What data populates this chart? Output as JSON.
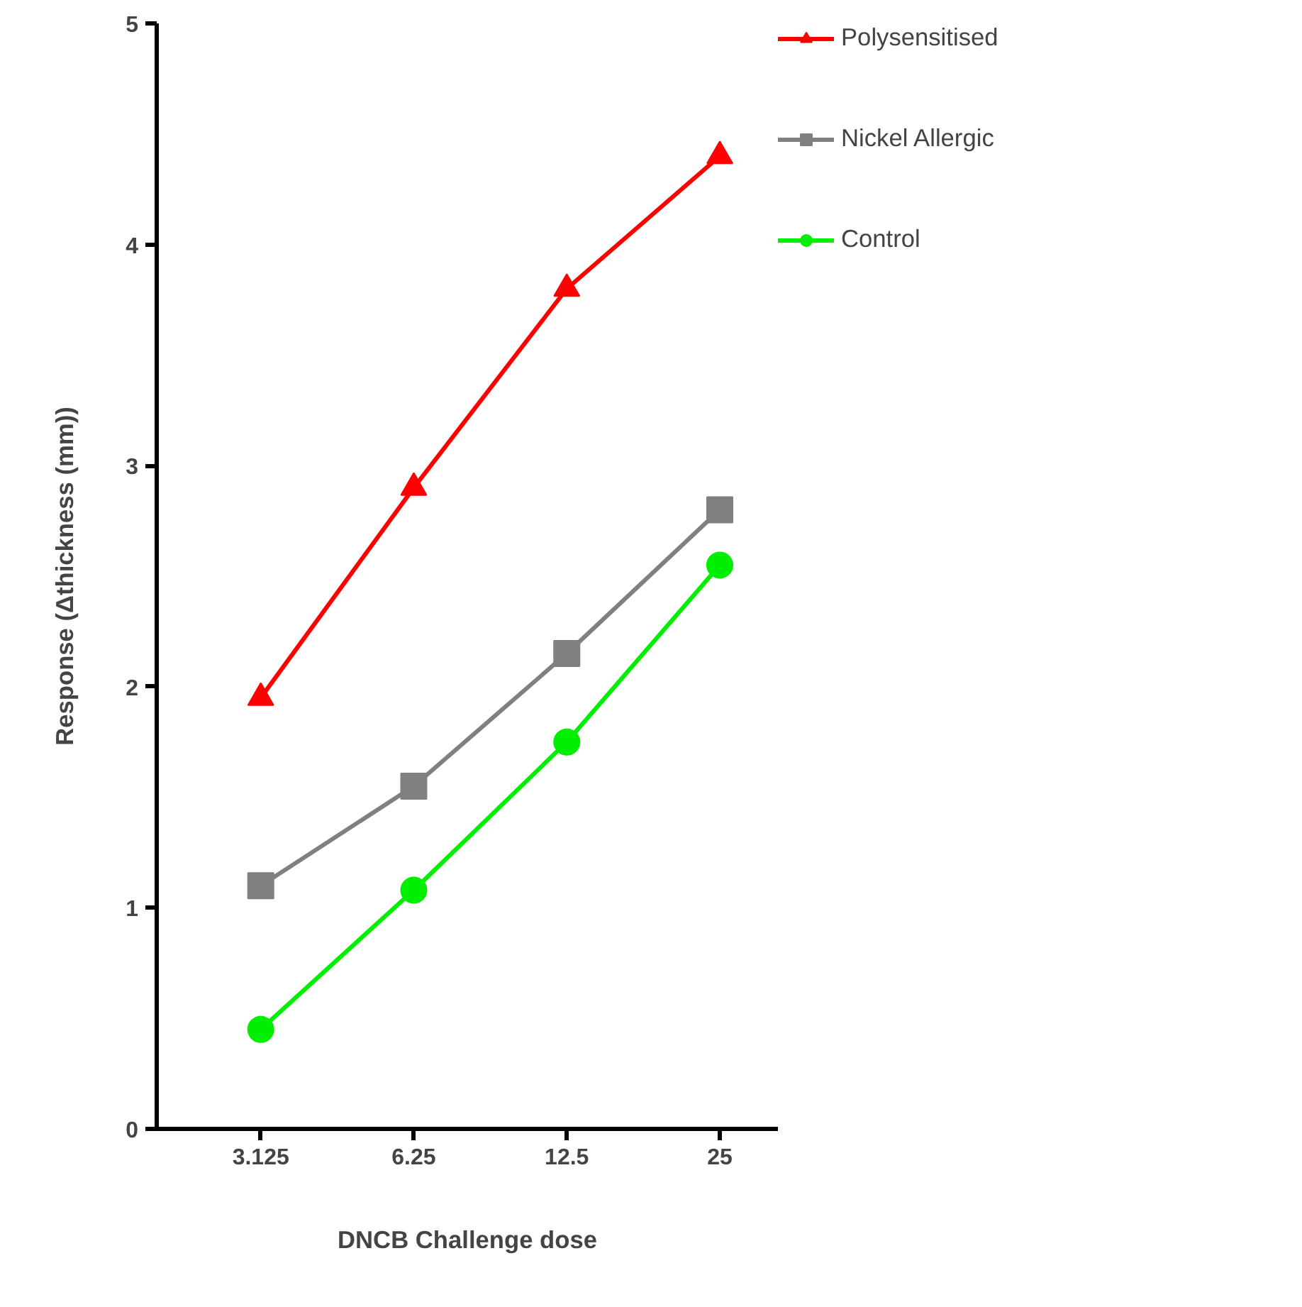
{
  "chart_data": {
    "type": "line",
    "xlabel": "DNCB Challenge dose",
    "ylabel": "Response (Δthickness (mm))",
    "categories": [
      "3.125",
      "6.25",
      "12.5",
      "25"
    ],
    "ylim": [
      0,
      5
    ],
    "yticks": [
      0,
      1,
      2,
      3,
      4,
      5
    ],
    "grid": false,
    "legend": "right",
    "series": [
      {
        "name": "Polysensitised",
        "color": "#ff0000",
        "marker": "triangle",
        "values": [
          1.95,
          2.9,
          3.8,
          4.4
        ]
      },
      {
        "name": "Nickel Allergic",
        "color": "#808080",
        "marker": "square",
        "values": [
          1.1,
          1.55,
          2.15,
          2.8
        ]
      },
      {
        "name": "Control",
        "color": "#00ee00",
        "marker": "circle",
        "values": [
          0.45,
          1.08,
          1.75,
          2.55
        ]
      }
    ]
  }
}
